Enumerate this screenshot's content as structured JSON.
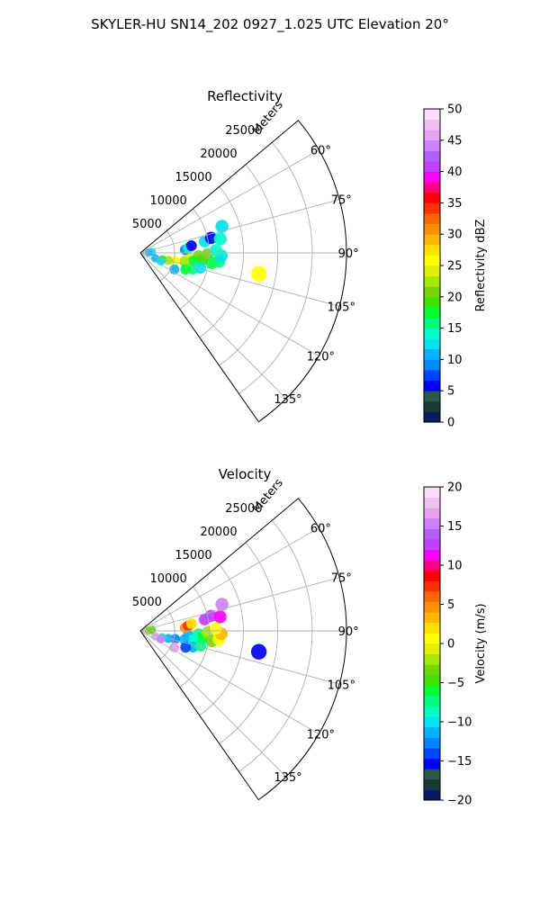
{
  "figure": {
    "suptitle": "SKYLER-HU  SN14_202  0927_1.025 UTC Elevation 20°"
  },
  "chart_data": [
    {
      "type": "heatmap",
      "projection": "polar-sector",
      "title": "Reflectivity",
      "range_label": "Meters",
      "azimuth_limits_deg": [
        50,
        145
      ],
      "range_limits_m": [
        0,
        30000
      ],
      "range_ticks": [
        5000,
        10000,
        15000,
        20000,
        25000
      ],
      "azimuth_ticks": [
        60,
        75,
        90,
        105,
        120,
        135
      ],
      "range_tick_labels": [
        "5000",
        "10000",
        "15000",
        "20000",
        "25000"
      ],
      "azimuth_tick_labels": [
        "60°",
        "75°",
        "90°",
        "105°",
        "120°",
        "135°"
      ],
      "grid": true,
      "colorbar": {
        "label": "Reflectivity dBZ",
        "limits": [
          0,
          50
        ],
        "ticks": [
          0,
          5,
          10,
          15,
          20,
          25,
          30,
          35,
          40,
          45,
          50
        ],
        "tick_labels": [
          "0",
          "5",
          "10",
          "15",
          "20",
          "25",
          "30",
          "35",
          "40",
          "45",
          "50"
        ],
        "colors": [
          "#0a1a66",
          "#1a3a3a",
          "#2a5a46",
          "#0000ff",
          "#0044ff",
          "#0088ff",
          "#00b4ff",
          "#00e4f0",
          "#00ffc8",
          "#00ff80",
          "#00ff30",
          "#44e000",
          "#70d800",
          "#a8e800",
          "#e0f000",
          "#ffff00",
          "#ffe000",
          "#ffb800",
          "#ff9000",
          "#ff6800",
          "#ff3000",
          "#ff0000",
          "#ff0080",
          "#ff00ff",
          "#c040ff",
          "#b060ff",
          "#d080ff",
          "#e8a0f0",
          "#f0c0f0",
          "#fadcf8"
        ]
      },
      "echoes": [
        {
          "az": 95,
          "r": 7000,
          "value": 24
        },
        {
          "az": 93,
          "r": 8500,
          "value": 20
        },
        {
          "az": 97,
          "r": 9000,
          "value": 19
        },
        {
          "az": 99,
          "r": 7800,
          "value": 18
        },
        {
          "az": 91,
          "r": 9800,
          "value": 21
        },
        {
          "az": 98,
          "r": 10500,
          "value": 17
        },
        {
          "az": 101,
          "r": 6500,
          "value": 22
        },
        {
          "az": 103,
          "r": 5200,
          "value": 26
        },
        {
          "az": 105,
          "r": 4200,
          "value": 23
        },
        {
          "az": 107,
          "r": 3300,
          "value": 19
        },
        {
          "az": 96,
          "r": 11500,
          "value": 15
        },
        {
          "az": 92,
          "r": 11800,
          "value": 12
        },
        {
          "az": 88,
          "r": 11000,
          "value": 14
        },
        {
          "az": 86,
          "r": 6500,
          "value": 9
        },
        {
          "az": 84,
          "r": 7000,
          "value": 14
        },
        {
          "az": 82,
          "r": 7500,
          "value": 5
        },
        {
          "az": 80,
          "r": 9500,
          "value": 12
        },
        {
          "az": 78,
          "r": 10500,
          "value": 6
        },
        {
          "az": 80,
          "r": 11800,
          "value": 14
        },
        {
          "az": 72,
          "r": 12500,
          "value": 12
        },
        {
          "az": 85,
          "r": 1700,
          "value": 13
        },
        {
          "az": 88,
          "r": 1200,
          "value": 11
        },
        {
          "az": 110,
          "r": 2300,
          "value": 11
        },
        {
          "az": 112,
          "r": 3200,
          "value": 13
        },
        {
          "az": 107,
          "r": 8000,
          "value": 16
        },
        {
          "az": 104,
          "r": 9000,
          "value": 12
        },
        {
          "az": 110,
          "r": 7000,
          "value": 18
        },
        {
          "az": 116,
          "r": 5500,
          "value": 10
        },
        {
          "az": 100,
          "r": 17500,
          "value": 25
        }
      ]
    },
    {
      "type": "heatmap",
      "projection": "polar-sector",
      "title": "Velocity",
      "range_label": "Meters",
      "azimuth_limits_deg": [
        50,
        145
      ],
      "range_limits_m": [
        0,
        30000
      ],
      "range_ticks": [
        5000,
        10000,
        15000,
        20000,
        25000
      ],
      "azimuth_ticks": [
        60,
        75,
        90,
        105,
        120,
        135
      ],
      "range_tick_labels": [
        "5000",
        "10000",
        "15000",
        "20000",
        "25000"
      ],
      "azimuth_tick_labels": [
        "60°",
        "75°",
        "90°",
        "105°",
        "120°",
        "135°"
      ],
      "grid": true,
      "colorbar": {
        "label": "Velocity (m/s)",
        "limits": [
          -20,
          20
        ],
        "ticks": [
          -20,
          -15,
          -10,
          -5,
          0,
          5,
          10,
          15,
          20
        ],
        "tick_labels": [
          "−20",
          "−15",
          "−10",
          "−5",
          "0",
          "5",
          "10",
          "15",
          "20"
        ],
        "colors": [
          "#0a1a66",
          "#1a3a3a",
          "#2a5a46",
          "#0000ff",
          "#0044ff",
          "#0088ff",
          "#00b4ff",
          "#00e4f0",
          "#00ffc8",
          "#00ff80",
          "#00ff30",
          "#44e000",
          "#70d800",
          "#a8e800",
          "#e0f000",
          "#ffff00",
          "#ffe000",
          "#ffb800",
          "#ff9000",
          "#ff6800",
          "#ff3000",
          "#ff0000",
          "#ff0080",
          "#ff00ff",
          "#c040ff",
          "#b060ff",
          "#d080ff",
          "#e8a0f0",
          "#f0c0f0",
          "#fadcf8"
        ]
      },
      "echoes": [
        {
          "az": 95,
          "r": 7000,
          "value": -11
        },
        {
          "az": 93,
          "r": 8500,
          "value": -7
        },
        {
          "az": 97,
          "r": 9000,
          "value": -6
        },
        {
          "az": 99,
          "r": 7800,
          "value": -9
        },
        {
          "az": 91,
          "r": 9800,
          "value": -2
        },
        {
          "az": 98,
          "r": 10500,
          "value": -3
        },
        {
          "az": 101,
          "r": 6500,
          "value": -12
        },
        {
          "az": 103,
          "r": 5200,
          "value": -13
        },
        {
          "az": 105,
          "r": 4200,
          "value": -12
        },
        {
          "az": 107,
          "r": 3300,
          "value": -10
        },
        {
          "az": 96,
          "r": 11500,
          "value": 1
        },
        {
          "az": 92,
          "r": 11800,
          "value": 3
        },
        {
          "az": 88,
          "r": 11000,
          "value": 0
        },
        {
          "az": 86,
          "r": 6500,
          "value": 5
        },
        {
          "az": 84,
          "r": 7000,
          "value": 7
        },
        {
          "az": 82,
          "r": 7500,
          "value": 2
        },
        {
          "az": 80,
          "r": 9500,
          "value": 12
        },
        {
          "az": 78,
          "r": 10500,
          "value": 13
        },
        {
          "az": 80,
          "r": 11800,
          "value": 11
        },
        {
          "az": 72,
          "r": 12500,
          "value": 15
        },
        {
          "az": 85,
          "r": 1700,
          "value": -5
        },
        {
          "az": 88,
          "r": 1200,
          "value": -3
        },
        {
          "az": 110,
          "r": 2300,
          "value": 16
        },
        {
          "az": 112,
          "r": 3200,
          "value": 15
        },
        {
          "az": 107,
          "r": 8000,
          "value": -12
        },
        {
          "az": 104,
          "r": 9000,
          "value": -8
        },
        {
          "az": 110,
          "r": 7000,
          "value": -14
        },
        {
          "az": 116,
          "r": 5500,
          "value": 17
        },
        {
          "az": 100,
          "r": 17500,
          "value": -16
        }
      ]
    }
  ]
}
